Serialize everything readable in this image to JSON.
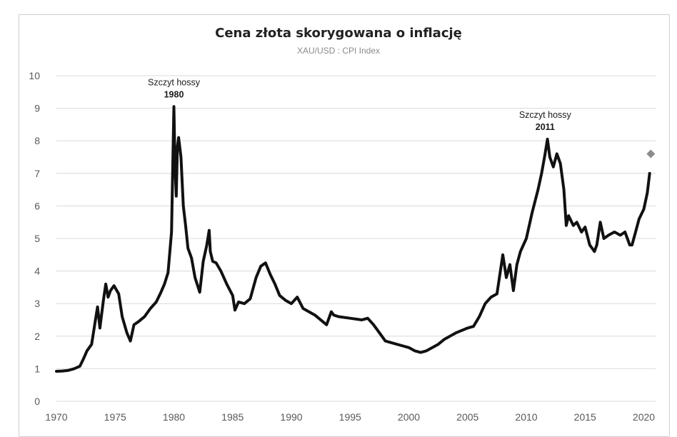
{
  "chart_data": {
    "type": "line",
    "title": "Cena złota skorygowana o inflację",
    "subtitle": "XAU/USD : CPI Index",
    "xlabel": "",
    "ylabel": "",
    "xlim": [
      1970,
      2021
    ],
    "ylim": [
      0,
      10
    ],
    "grid": true,
    "x_ticks": [
      "1970",
      "1975",
      "1980",
      "1985",
      "1990",
      "1995",
      "2000",
      "2005",
      "2010",
      "2015",
      "2020"
    ],
    "y_ticks": [
      "0",
      "1",
      "2",
      "3",
      "4",
      "5",
      "6",
      "7",
      "8",
      "9",
      "10"
    ],
    "series": [
      {
        "x": [
          1970.0,
          1970.5,
          1971.0,
          1971.5,
          1972.0,
          1972.3,
          1972.6,
          1973.0,
          1973.3,
          1973.5,
          1973.7,
          1974.0,
          1974.2,
          1974.4,
          1974.6,
          1974.9,
          1975.3,
          1975.6,
          1976.0,
          1976.3,
          1976.6,
          1977.0,
          1977.5,
          1978.0,
          1978.5,
          1978.9,
          1979.2,
          1979.5,
          1979.8,
          1980.0,
          1980.1,
          1980.2,
          1980.3,
          1980.4,
          1980.6,
          1980.8,
          1981.0,
          1981.2,
          1981.5,
          1981.8,
          1982.2,
          1982.5,
          1982.8,
          1983.0,
          1983.1,
          1983.3,
          1983.6,
          1984.0,
          1984.5,
          1985.0,
          1985.2,
          1985.5,
          1986.0,
          1986.5,
          1987.0,
          1987.4,
          1987.8,
          1988.2,
          1988.6,
          1989.0,
          1989.5,
          1990.0,
          1990.5,
          1991.0,
          1992.0,
          1993.0,
          1993.4,
          1993.6,
          1994.0,
          1995.0,
          1996.0,
          1996.5,
          1997.0,
          1997.5,
          1998.0,
          1999.0,
          1999.5,
          2000.0,
          2000.5,
          2001.0,
          2001.5,
          2002.0,
          2002.5,
          2003.0,
          2004.0,
          2005.0,
          2005.5,
          2006.0,
          2006.5,
          2007.0,
          2007.5,
          2008.0,
          2008.3,
          2008.6,
          2008.9,
          2009.2,
          2009.5,
          2010.0,
          2010.5,
          2011.0,
          2011.3,
          2011.6,
          2011.8,
          2012.0,
          2012.3,
          2012.6,
          2012.9,
          2013.2,
          2013.4,
          2013.6,
          2014.0,
          2014.3,
          2014.7,
          2015.0,
          2015.4,
          2015.8,
          2016.0,
          2016.3,
          2016.6,
          2017.0,
          2017.5,
          2018.0,
          2018.4,
          2018.8,
          2019.0,
          2019.3,
          2019.6,
          2020.0,
          2020.3,
          2020.5
        ],
        "values": [
          0.92,
          0.93,
          0.95,
          1.0,
          1.08,
          1.3,
          1.55,
          1.75,
          2.45,
          2.9,
          2.25,
          3.1,
          3.6,
          3.2,
          3.4,
          3.55,
          3.3,
          2.6,
          2.1,
          1.85,
          2.35,
          2.45,
          2.6,
          2.85,
          3.05,
          3.35,
          3.6,
          3.95,
          5.2,
          9.05,
          7.2,
          6.3,
          7.8,
          8.1,
          7.5,
          6.0,
          5.4,
          4.7,
          4.4,
          3.8,
          3.35,
          4.3,
          4.8,
          5.25,
          4.6,
          4.3,
          4.25,
          4.0,
          3.6,
          3.25,
          2.8,
          3.05,
          3.0,
          3.15,
          3.8,
          4.15,
          4.25,
          3.9,
          3.6,
          3.25,
          3.1,
          3.0,
          3.2,
          2.85,
          2.65,
          2.35,
          2.75,
          2.65,
          2.6,
          2.55,
          2.5,
          2.55,
          2.35,
          2.1,
          1.85,
          1.75,
          1.7,
          1.65,
          1.55,
          1.5,
          1.55,
          1.65,
          1.75,
          1.9,
          2.1,
          2.25,
          2.3,
          2.6,
          3.0,
          3.2,
          3.3,
          4.5,
          3.8,
          4.2,
          3.4,
          4.2,
          4.6,
          5.0,
          5.8,
          6.5,
          7.0,
          7.6,
          8.05,
          7.5,
          7.2,
          7.6,
          7.3,
          6.5,
          5.4,
          5.7,
          5.4,
          5.5,
          5.2,
          5.35,
          4.8,
          4.6,
          4.8,
          5.5,
          5.0,
          5.1,
          5.2,
          5.1,
          5.2,
          4.8,
          4.8,
          5.2,
          5.6,
          5.9,
          6.4,
          7.0
        ]
      }
    ],
    "marker": {
      "x": 2020.6,
      "y": 7.6,
      "shape": "diamond",
      "color": "#8c8c8c"
    },
    "annotations": [
      {
        "line1": "Szczyt hossy",
        "line2": "1980",
        "x": 1980.0
      },
      {
        "line1": "Szczyt hossy",
        "line2": "2011",
        "x": 2011.6
      }
    ],
    "colors": {
      "line": "#111111",
      "grid": "#d9d9d9",
      "axis_text": "#595959"
    }
  }
}
